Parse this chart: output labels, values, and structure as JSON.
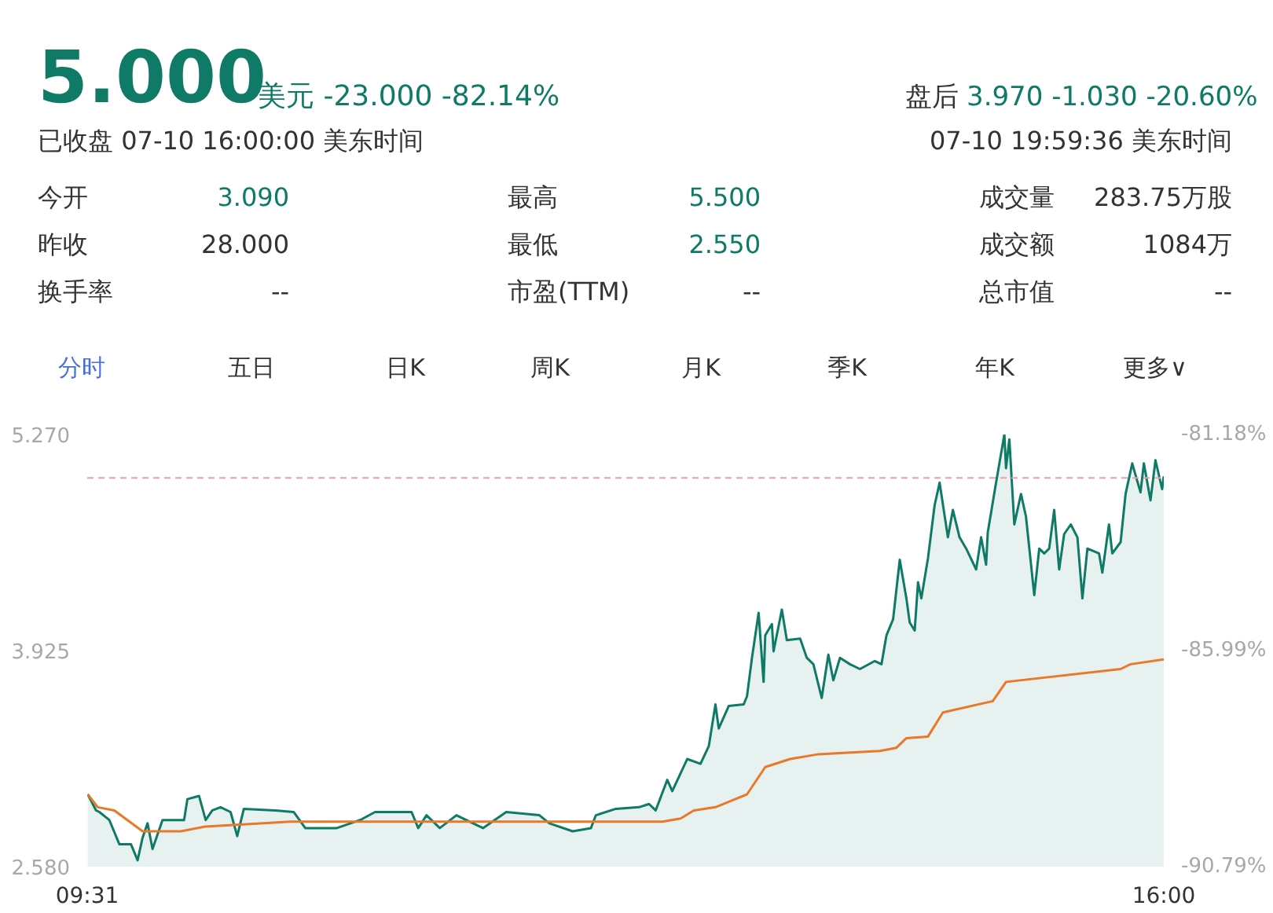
{
  "chart_data": {
    "type": "line",
    "annotations": [
      "5.000",
      "美元 -23.000 -82.14%",
      "盘后",
      "3.970 -1.030 -20.60%",
      "已收盘 07-10 16:00:00 美东时间",
      "07-10 19:59:36 美东时间",
      "今开",
      "3.090",
      "最高",
      "5.500",
      "成交量",
      "283.75万股",
      "昨收",
      "28.000",
      "最低",
      "2.550",
      "成交额",
      "1084万",
      "换手率",
      "--",
      "市盈(TTM)",
      "--",
      "总市值",
      "--",
      "分时",
      "五日",
      "日K",
      "周K",
      "月K",
      "季K",
      "年K",
      "更多∨"
    ],
    "xlim": [
      9.5167,
      16.0
    ],
    "xticks": [
      {
        "value": 9.5167,
        "label": "09:31"
      },
      {
        "value": 16.0,
        "label": "16:00"
      }
    ],
    "ylim": [
      2.58,
      5.27
    ],
    "yticks": [
      {
        "value": 2.58,
        "label": "2.580"
      },
      {
        "value": 3.925,
        "label": "3.925"
      },
      {
        "value": 5.27,
        "label": "5.270"
      }
    ],
    "y2lim": [
      -90.79,
      -81.18
    ],
    "y2ticks": [
      {
        "value": -90.79,
        "label": "-90.79%"
      },
      {
        "value": -85.99,
        "label": "-85.99%"
      },
      {
        "value": -81.18,
        "label": "-81.18%"
      }
    ],
    "ref_lines": [
      {
        "axis": "y",
        "value": 5.0,
        "label": null,
        "color": "#f0a0a0",
        "line_style": "dashed"
      }
    ],
    "series": [
      {
        "type": "area",
        "color": "#0f7a66",
        "x": [
          9.52,
          9.57,
          9.59,
          9.65,
          9.71,
          9.78,
          9.82,
          9.85,
          9.88,
          9.91,
          9.97,
          10.1,
          10.12,
          10.19,
          10.23,
          10.27,
          10.32,
          10.38,
          10.42,
          10.46,
          10.65,
          10.76,
          10.83,
          11.02,
          11.16,
          11.25,
          11.47,
          11.51,
          11.56,
          11.64,
          11.74,
          11.9,
          12.04,
          12.24,
          12.3,
          12.44,
          12.55,
          12.58,
          12.7,
          12.84,
          12.9,
          12.94,
          13.01,
          13.04,
          13.13,
          13.21,
          13.26,
          13.3,
          13.32,
          13.38,
          13.47,
          13.49,
          13.52,
          13.56,
          13.59,
          13.6,
          13.64,
          13.65,
          13.7,
          13.73,
          13.81,
          13.85,
          13.89,
          13.94,
          13.98,
          14.01,
          14.05,
          14.11,
          14.17,
          14.26,
          14.3,
          14.33,
          14.37,
          14.41,
          14.45,
          14.47,
          14.5,
          14.52,
          14.54,
          14.58,
          14.62,
          14.65,
          14.7,
          14.73,
          14.77,
          14.81,
          14.87,
          14.9,
          14.93,
          14.94,
          14.99,
          15.04,
          15.05,
          15.07,
          15.1,
          15.14,
          15.17,
          15.22,
          15.25,
          15.28,
          15.31,
          15.34,
          15.37,
          15.4,
          15.44,
          15.48,
          15.51,
          15.54,
          15.61,
          15.63,
          15.67,
          15.69,
          15.74,
          15.77,
          15.81,
          15.86,
          15.88,
          15.92,
          15.95,
          15.99,
          16.0
        ],
        "values": [
          3.03,
          2.93,
          2.92,
          2.87,
          2.72,
          2.72,
          2.62,
          2.76,
          2.85,
          2.69,
          2.87,
          2.87,
          3.0,
          3.02,
          2.87,
          2.93,
          2.95,
          2.92,
          2.77,
          2.94,
          2.93,
          2.92,
          2.82,
          2.82,
          2.87,
          2.92,
          2.92,
          2.82,
          2.9,
          2.82,
          2.9,
          2.82,
          2.92,
          2.9,
          2.85,
          2.8,
          2.82,
          2.9,
          2.94,
          2.95,
          2.97,
          2.93,
          3.12,
          3.05,
          3.25,
          3.22,
          3.33,
          3.59,
          3.44,
          3.58,
          3.59,
          3.64,
          3.88,
          4.16,
          3.73,
          4.02,
          4.09,
          3.92,
          4.18,
          3.99,
          4.0,
          3.88,
          3.84,
          3.63,
          3.9,
          3.74,
          3.88,
          3.84,
          3.81,
          3.86,
          3.84,
          4.02,
          4.12,
          4.49,
          4.25,
          4.1,
          4.05,
          4.35,
          4.25,
          4.5,
          4.83,
          4.97,
          4.63,
          4.8,
          4.63,
          4.56,
          4.43,
          4.63,
          4.46,
          4.66,
          4.97,
          5.27,
          5.06,
          5.24,
          4.71,
          4.9,
          4.76,
          4.27,
          4.56,
          4.53,
          4.56,
          4.8,
          4.43,
          4.65,
          4.71,
          4.63,
          4.25,
          4.56,
          4.53,
          4.41,
          4.71,
          4.53,
          4.6,
          4.9,
          5.09,
          4.91,
          5.09,
          4.86,
          5.11,
          4.93,
          5.01
        ]
      },
      {
        "color": "#e8782a",
        "x": [
          9.52,
          9.58,
          9.68,
          9.85,
          10.08,
          10.23,
          10.74,
          12.98,
          13.09,
          13.17,
          13.3,
          13.49,
          13.6,
          13.75,
          13.92,
          14.29,
          14.39,
          14.45,
          14.58,
          14.67,
          14.97,
          15.05,
          15.74,
          15.8,
          16.0
        ],
        "values": [
          3.03,
          2.95,
          2.93,
          2.8,
          2.8,
          2.83,
          2.86,
          2.86,
          2.88,
          2.93,
          2.95,
          3.03,
          3.2,
          3.25,
          3.28,
          3.3,
          3.32,
          3.38,
          3.39,
          3.54,
          3.61,
          3.73,
          3.81,
          3.84,
          3.87
        ]
      }
    ]
  }
}
